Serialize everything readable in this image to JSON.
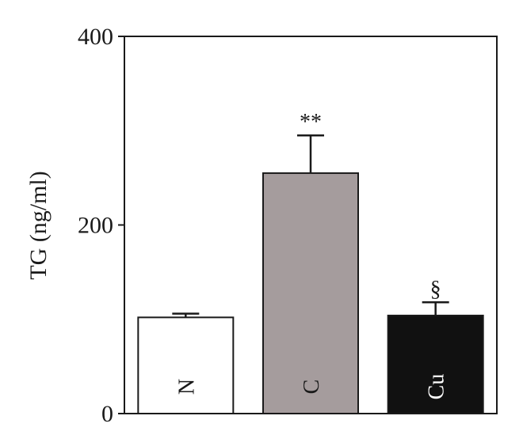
{
  "chart_data": {
    "type": "bar",
    "categories": [
      "N",
      "C",
      "Cu"
    ],
    "values": [
      102,
      255,
      104
    ],
    "errors": [
      4,
      40,
      14
    ],
    "annotations": [
      "",
      "**",
      "§"
    ],
    "bar_colors": [
      "#ffffff",
      "#a59c9d",
      "#111111"
    ],
    "category_label_colors": [
      "#1a1a1a",
      "#1a1a1a",
      "#ffffff"
    ],
    "ylabel": "TG (ng/ml)",
    "ylim": [
      0,
      400
    ],
    "yticks": [
      "0",
      "200",
      "400"
    ],
    "grid": false
  }
}
